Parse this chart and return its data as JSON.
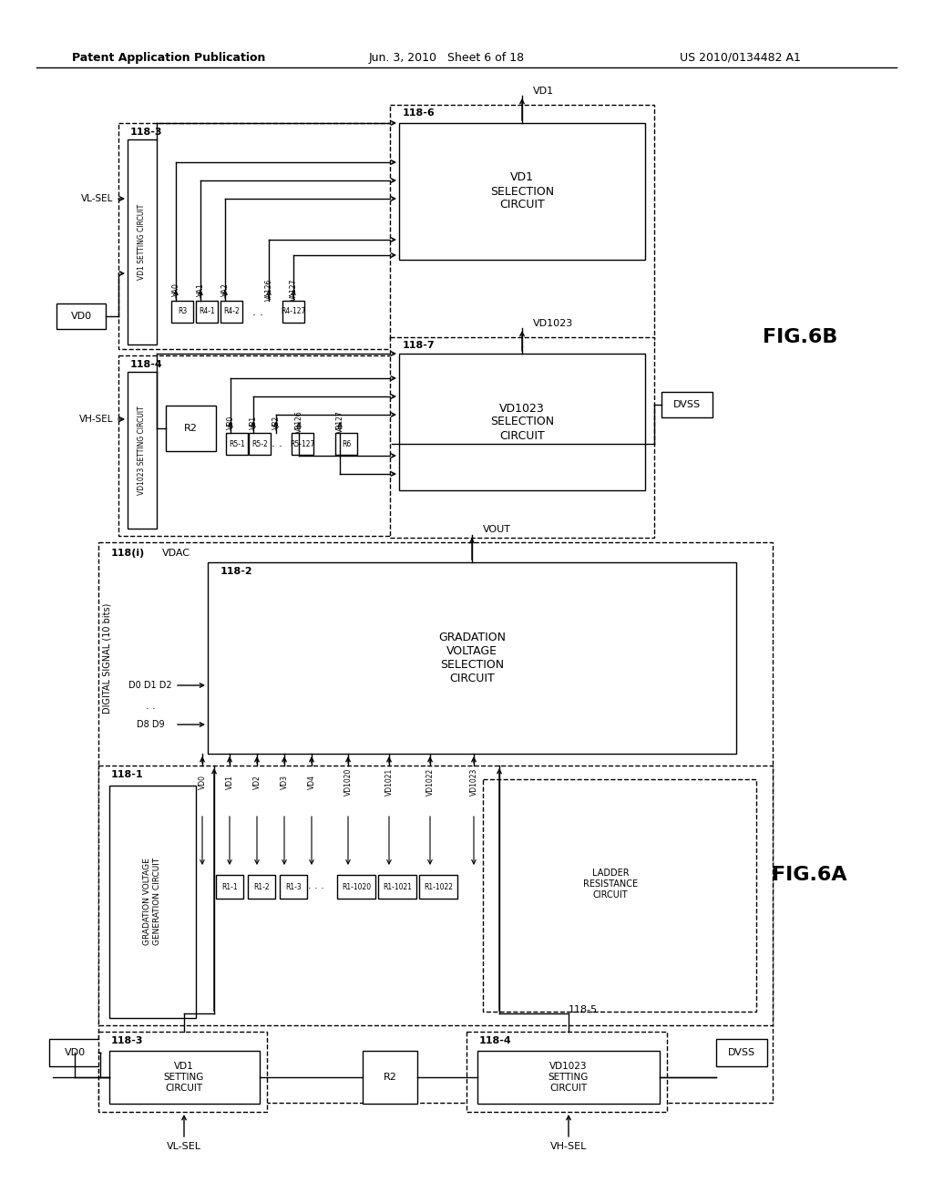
{
  "bg": "#ffffff",
  "header_left": "Patent Application Publication",
  "header_mid": "Jun. 3, 2010   Sheet 6 of 18",
  "header_right": "US 2010/0134482 A1",
  "fig_a": "FIG.6A",
  "fig_b": "FIG.6B"
}
